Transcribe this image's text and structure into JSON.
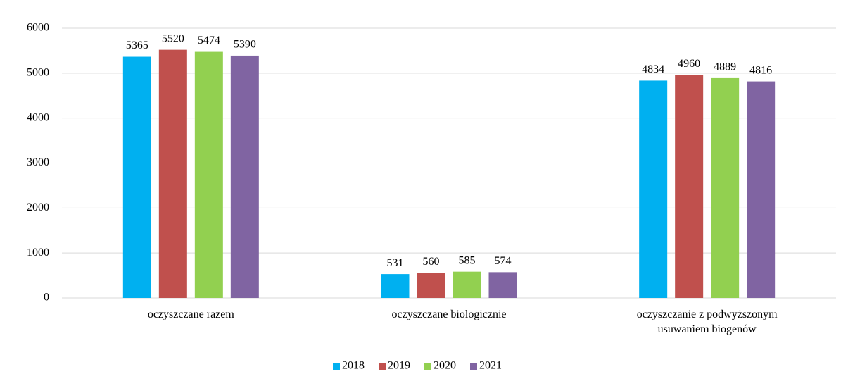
{
  "chart_data": {
    "type": "bar",
    "categories": [
      "oczyszczane razem",
      "oczyszczane biologicznie",
      "oczyszczanie z podwyższonym usuwaniem biogenów"
    ],
    "series": [
      {
        "name": "2018",
        "color": "#00b0f0",
        "values": [
          5365,
          531,
          4834
        ]
      },
      {
        "name": "2019",
        "color": "#c0504d",
        "values": [
          5520,
          560,
          4960
        ]
      },
      {
        "name": "2020",
        "color": "#92d050",
        "values": [
          5474,
          585,
          4889
        ]
      },
      {
        "name": "2021",
        "color": "#8064a2",
        "values": [
          5390,
          574,
          4816
        ]
      }
    ],
    "ylim": [
      0,
      6000
    ],
    "yticks": [
      0,
      1000,
      2000,
      3000,
      4000,
      5000,
      6000
    ],
    "grid": true,
    "legend": "bottom"
  }
}
